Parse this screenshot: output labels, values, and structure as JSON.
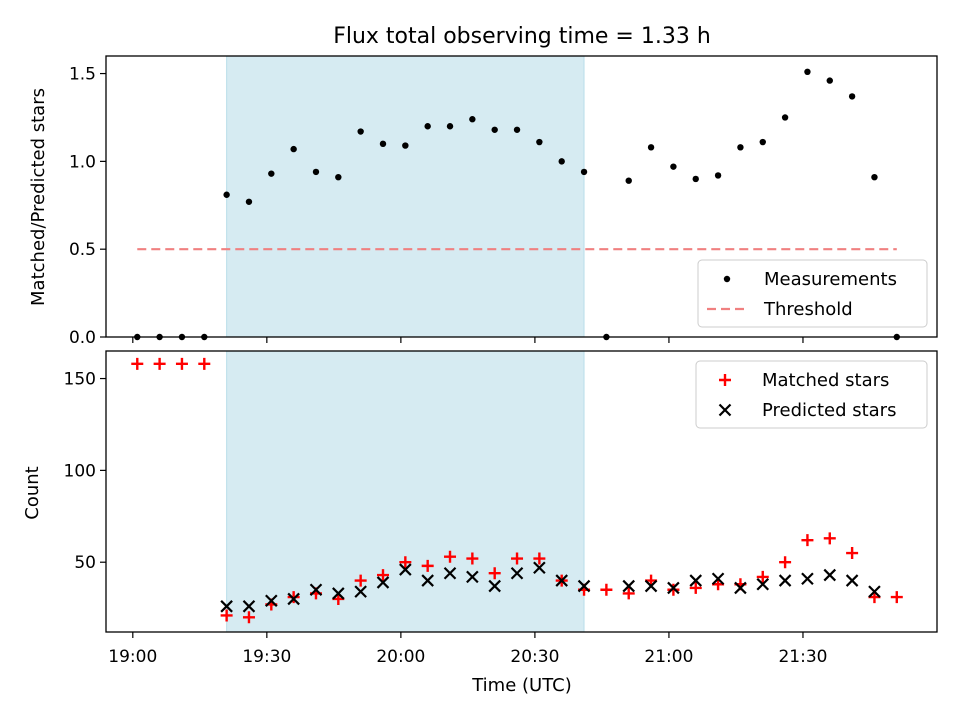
{
  "title": "Flux total observing time = 1.33 h",
  "chart_data": [
    {
      "type": "scatter",
      "ylabel": "Matched/Predicted stars",
      "ylim": [
        0,
        1.6
      ],
      "yticks": [
        0.0,
        0.5,
        1.0,
        1.5
      ],
      "ytick_labels": [
        "0.0",
        "0.5",
        "1.0",
        "1.5"
      ],
      "xlim": [
        "18:54",
        "22:00"
      ],
      "shaded_interval": [
        "19:21",
        "20:41"
      ],
      "shade_color": "#add8e6",
      "legend_position": "lower right",
      "series": [
        {
          "name": "Measurements",
          "marker": "dot",
          "color": "#000000",
          "x": [
            "19:01",
            "19:06",
            "19:11",
            "19:16",
            "19:21",
            "19:26",
            "19:31",
            "19:36",
            "19:41",
            "19:46",
            "19:51",
            "19:56",
            "20:01",
            "20:06",
            "20:11",
            "20:16",
            "20:21",
            "20:26",
            "20:31",
            "20:36",
            "20:41",
            "20:46",
            "20:51",
            "20:56",
            "21:01",
            "21:06",
            "21:11",
            "21:16",
            "21:21",
            "21:26",
            "21:31",
            "21:36",
            "21:41",
            "21:46",
            "21:51"
          ],
          "y": [
            0,
            0,
            0,
            0,
            0.81,
            0.77,
            0.93,
            1.07,
            0.94,
            0.91,
            1.17,
            1.1,
            1.09,
            1.2,
            1.2,
            1.24,
            1.18,
            1.18,
            1.11,
            1.0,
            0.94,
            0,
            0.89,
            1.08,
            0.97,
            0.9,
            0.92,
            1.08,
            1.11,
            1.25,
            1.51,
            1.46,
            1.37,
            0.91,
            0
          ]
        },
        {
          "name": "Threshold",
          "style": "dashed",
          "color": "#f08080",
          "x": [
            "19:01",
            "21:51"
          ],
          "y": [
            0.5,
            0.5
          ]
        }
      ]
    },
    {
      "type": "scatter",
      "xlabel": "Time (UTC)",
      "ylabel": "Count",
      "ylim": [
        12,
        165
      ],
      "yticks": [
        50,
        100,
        150
      ],
      "ytick_labels": [
        "50",
        "100",
        "150"
      ],
      "xlim": [
        "18:54",
        "22:00"
      ],
      "xticks": [
        "19:00",
        "19:30",
        "20:00",
        "20:30",
        "21:00",
        "21:30"
      ],
      "xtick_labels": [
        "19:00",
        "19:30",
        "20:00",
        "20:30",
        "21:00",
        "21:30"
      ],
      "shaded_interval": [
        "19:21",
        "20:41"
      ],
      "shade_color": "#add8e6",
      "legend_position": "upper right",
      "series": [
        {
          "name": "Matched stars",
          "marker": "plus",
          "color": "#ff0000",
          "x": [
            "19:01",
            "19:06",
            "19:11",
            "19:16",
            "19:21",
            "19:26",
            "19:31",
            "19:36",
            "19:41",
            "19:46",
            "19:51",
            "19:56",
            "20:01",
            "20:06",
            "20:11",
            "20:16",
            "20:21",
            "20:26",
            "20:31",
            "20:36",
            "20:41",
            "20:46",
            "20:51",
            "20:56",
            "21:01",
            "21:06",
            "21:11",
            "21:16",
            "21:21",
            "21:26",
            "21:31",
            "21:36",
            "21:41",
            "21:46",
            "21:51"
          ],
          "y": [
            158,
            158,
            158,
            158,
            21,
            20,
            27,
            31,
            33,
            30,
            40,
            43,
            50,
            48,
            53,
            52,
            44,
            52,
            52,
            40,
            35,
            35,
            33,
            40,
            35,
            36,
            38,
            38,
            42,
            50,
            62,
            63,
            55,
            31,
            31
          ]
        },
        {
          "name": "Predicted stars",
          "marker": "x",
          "color": "#000000",
          "x": [
            "19:21",
            "19:26",
            "19:31",
            "19:36",
            "19:41",
            "19:46",
            "19:51",
            "19:56",
            "20:01",
            "20:06",
            "20:11",
            "20:16",
            "20:21",
            "20:26",
            "20:31",
            "20:36",
            "20:41",
            "20:51",
            "20:56",
            "21:01",
            "21:06",
            "21:11",
            "21:16",
            "21:21",
            "21:26",
            "21:31",
            "21:36",
            "21:41",
            "21:46"
          ],
          "y": [
            26,
            26,
            29,
            30,
            35,
            33,
            34,
            39,
            46,
            40,
            44,
            42,
            37,
            44,
            47,
            40,
            37,
            37,
            37,
            36,
            40,
            41,
            36,
            38,
            40,
            41,
            43,
            40,
            34
          ]
        }
      ]
    }
  ]
}
